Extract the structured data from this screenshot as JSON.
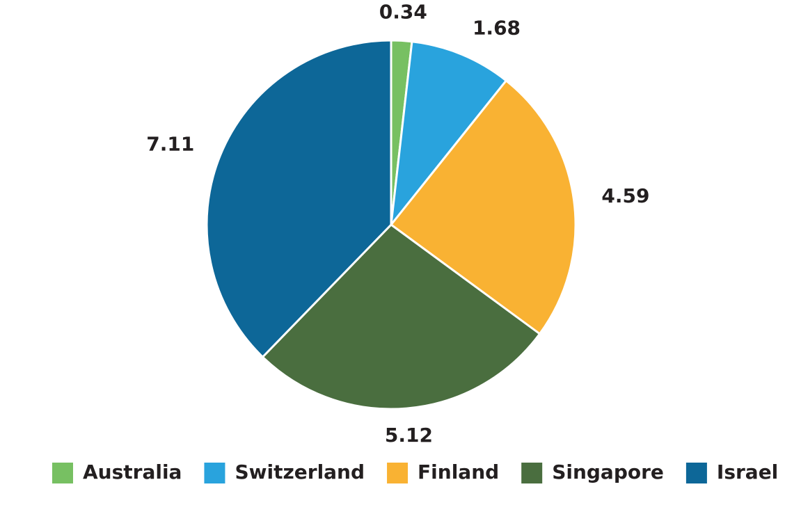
{
  "chart_data": {
    "type": "pie",
    "categories": [
      "Australia",
      "Switzerland",
      "Finland",
      "Singapore",
      "Israel"
    ],
    "values": [
      0.34,
      1.68,
      4.59,
      5.12,
      7.11
    ],
    "colors": [
      "#77c062",
      "#29a3dd",
      "#f9b233",
      "#4a6e3f",
      "#0d6798"
    ],
    "legend": "bottom"
  }
}
